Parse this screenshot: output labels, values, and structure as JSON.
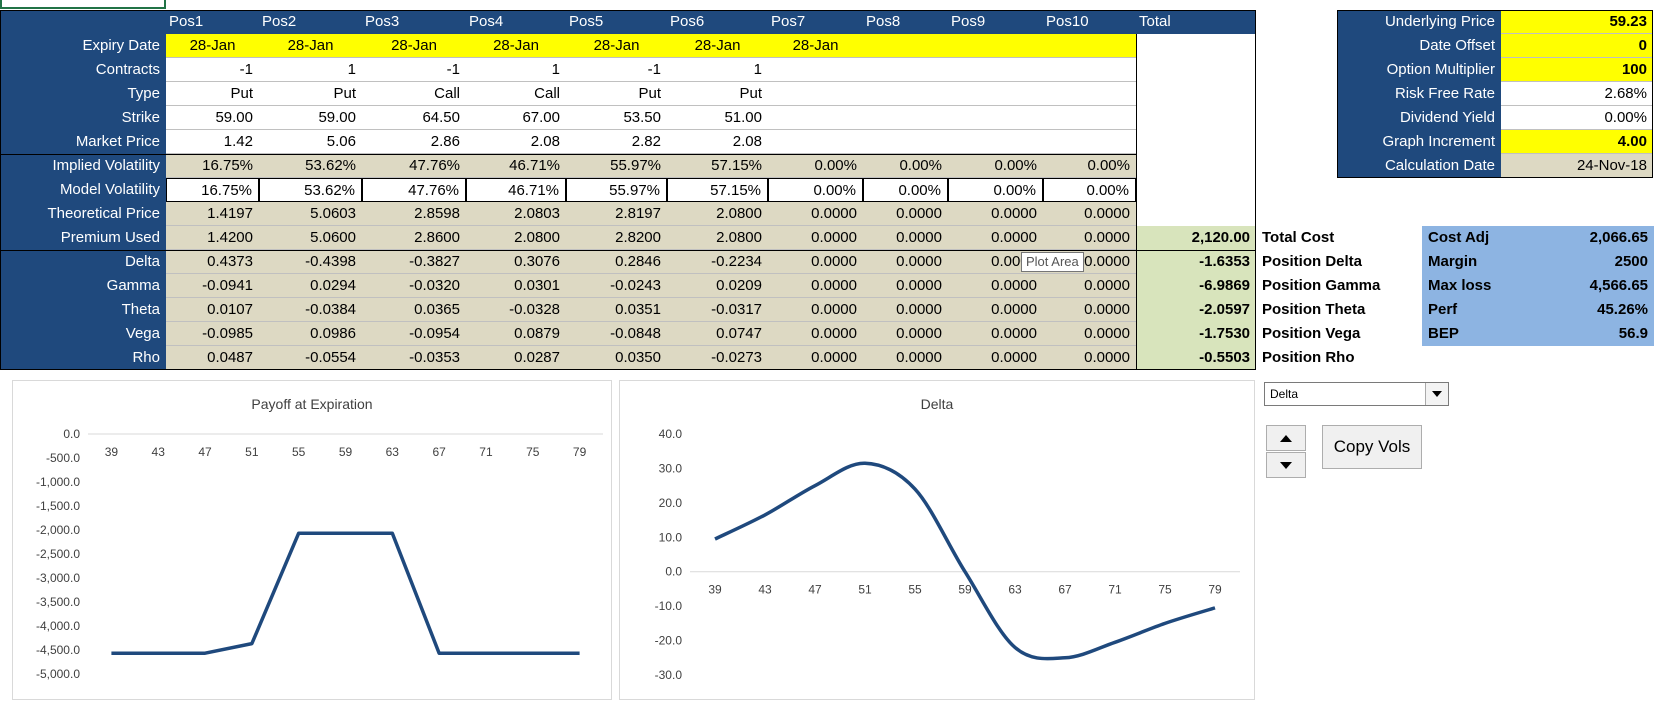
{
  "columns": [
    "Pos1",
    "Pos2",
    "Pos3",
    "Pos4",
    "Pos5",
    "Pos6",
    "Pos7",
    "Pos8",
    "Pos9",
    "Pos10",
    "Total"
  ],
  "rows": [
    {
      "label": "Expiry Date",
      "style": "yellow",
      "cells": [
        "28-Jan",
        "28-Jan",
        "28-Jan",
        "28-Jan",
        "28-Jan",
        "28-Jan",
        "28-Jan",
        "",
        "",
        ""
      ],
      "align": "c"
    },
    {
      "label": "Contracts",
      "style": "white",
      "cells": [
        "-1",
        "1",
        "-1",
        "1",
        "-1",
        "1",
        "",
        "",
        "",
        ""
      ]
    },
    {
      "label": "Type",
      "style": "white",
      "cells": [
        "Put",
        "Put",
        "Call",
        "Call",
        "Put",
        "Put",
        "",
        "",
        "",
        ""
      ]
    },
    {
      "label": "Strike",
      "style": "white",
      "cells": [
        "59.00",
        "59.00",
        "64.50",
        "67.00",
        "53.50",
        "51.00",
        "",
        "",
        "",
        ""
      ]
    },
    {
      "label": "Market Price",
      "style": "white",
      "cells": [
        "1.42",
        "5.06",
        "2.86",
        "2.08",
        "2.82",
        "2.08",
        "",
        "",
        "",
        ""
      ]
    },
    {
      "label": "Implied Volatility",
      "style": "tan",
      "cells": [
        "16.75%",
        "53.62%",
        "47.76%",
        "46.71%",
        "55.97%",
        "57.15%",
        "0.00%",
        "0.00%",
        "0.00%",
        "0.00%"
      ]
    },
    {
      "label": "Model Volatility",
      "style": "boxed",
      "cells": [
        "16.75%",
        "53.62%",
        "47.76%",
        "46.71%",
        "55.97%",
        "57.15%",
        "0.00%",
        "0.00%",
        "0.00%",
        "0.00%"
      ]
    },
    {
      "label": "Theoretical Price",
      "style": "tan",
      "cells": [
        "1.4197",
        "5.0603",
        "2.8598",
        "2.0803",
        "2.8197",
        "2.0800",
        "0.0000",
        "0.0000",
        "0.0000",
        "0.0000"
      ]
    },
    {
      "label": "Premium Used",
      "style": "tan",
      "cells": [
        "1.4200",
        "5.0600",
        "2.8600",
        "2.0800",
        "2.8200",
        "2.0800",
        "0.0000",
        "0.0000",
        "0.0000",
        "0.0000"
      ],
      "total": "2,120.00",
      "side": "Total Cost"
    },
    {
      "label": "Delta",
      "style": "tan",
      "cells": [
        "0.4373",
        "-0.4398",
        "-0.3827",
        "0.3076",
        "0.2846",
        "-0.2234",
        "0.0000",
        "0.0000",
        "0.0000",
        "0.0000"
      ],
      "total": "-1.6353",
      "side": "Position Delta"
    },
    {
      "label": "Gamma",
      "style": "tan",
      "cells": [
        "-0.0941",
        "0.0294",
        "-0.0320",
        "0.0301",
        "-0.0243",
        "0.0209",
        "0.0000",
        "0.0000",
        "0.0000",
        "0.0000"
      ],
      "total": "-6.9869",
      "side": "Position Gamma"
    },
    {
      "label": "Theta",
      "style": "tan",
      "cells": [
        "0.0107",
        "-0.0384",
        "0.0365",
        "-0.0328",
        "0.0351",
        "-0.0317",
        "0.0000",
        "0.0000",
        "0.0000",
        "0.0000"
      ],
      "total": "-2.0597",
      "side": "Position Theta"
    },
    {
      "label": "Vega",
      "style": "tan",
      "cells": [
        "-0.0985",
        "0.0986",
        "-0.0954",
        "0.0879",
        "-0.0848",
        "0.0747",
        "0.0000",
        "0.0000",
        "0.0000",
        "0.0000"
      ],
      "total": "-1.7530",
      "side": "Position Vega"
    },
    {
      "label": "Rho",
      "style": "tan",
      "cells": [
        "0.0487",
        "-0.0554",
        "-0.0353",
        "0.0287",
        "0.0350",
        "-0.0273",
        "0.0000",
        "0.0000",
        "0.0000",
        "0.0000"
      ],
      "total": "-0.5503",
      "side": "Position Rho"
    }
  ],
  "params": [
    {
      "label": "Underlying Price",
      "value": "59.23",
      "style": "yellow"
    },
    {
      "label": "Date Offset",
      "value": "0",
      "style": "yellow"
    },
    {
      "label": "Option Multiplier",
      "value": "100",
      "style": "yellow"
    },
    {
      "label": "Risk Free Rate",
      "value": "2.68%",
      "style": "white"
    },
    {
      "label": "Dividend Yield",
      "value": "0.00%",
      "style": "white"
    },
    {
      "label": "Graph Increment",
      "value": "4.00",
      "style": "yellow"
    },
    {
      "label": "Calculation Date",
      "value": "24-Nov-18",
      "style": "tan"
    }
  ],
  "summary": [
    {
      "label": "Cost Adj",
      "value": "2,066.65"
    },
    {
      "label": "Margin",
      "value": "2500"
    },
    {
      "label": "Max loss",
      "value": "4,566.65"
    },
    {
      "label": "Perf",
      "value": "45.26%"
    },
    {
      "label": "BEP",
      "value": "56.9"
    }
  ],
  "tooltip": "Plot Area",
  "dropdown": {
    "selected": "Delta"
  },
  "buttons": {
    "copy_vols": "Copy Vols"
  },
  "colors": {
    "header": "#1f497d",
    "input": "#ffff00",
    "calc": "#ddd9c3",
    "total": "#d8e4bc",
    "summary": "#8db4e2",
    "line": "#1f497d"
  },
  "chart_data": [
    {
      "type": "line",
      "title": "Payoff at Expiration",
      "x": [
        "39",
        "43",
        "47",
        "51",
        "55",
        "59",
        "63",
        "67",
        "71",
        "75",
        "79"
      ],
      "values": [
        -4566.65,
        -4566.65,
        -4566.65,
        -4366.65,
        -2066.65,
        -2066.65,
        -2066.65,
        -4566.65,
        -4566.65,
        -4566.65,
        -4566.65
      ],
      "ytick_labels": [
        "0.0",
        "-500.0",
        "-1,000.0",
        "-1,500.0",
        "-2,000.0",
        "-2,500.0",
        "-3,000.0",
        "-3,500.0",
        "-4,000.0",
        "-4,500.0",
        "-5,000.0"
      ],
      "ylim": [
        -5000,
        0
      ]
    },
    {
      "type": "line",
      "title": "Delta",
      "x": [
        "39",
        "43",
        "47",
        "51",
        "55",
        "59",
        "63",
        "67",
        "71",
        "75",
        "79"
      ],
      "values": [
        9.5,
        16.5,
        25,
        31.5,
        24,
        0,
        -22,
        -25,
        -20.5,
        -15,
        -10.5
      ],
      "ytick_labels": [
        "40.0",
        "30.0",
        "20.0",
        "10.0",
        "0.0",
        "-10.0",
        "-20.0",
        "-30.0"
      ],
      "ylim": [
        -30,
        40
      ]
    }
  ]
}
